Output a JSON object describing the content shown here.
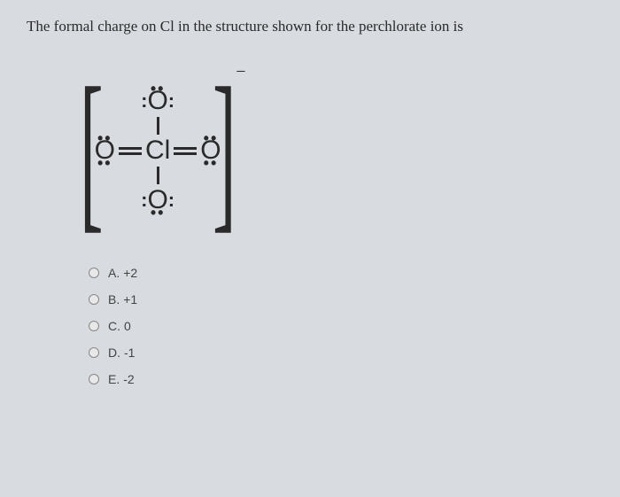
{
  "question": {
    "text": "The formal charge on Cl in the structure shown for the perchlorate ion is"
  },
  "structure": {
    "top_atom": "O",
    "bottom_atom": "O",
    "left_atom": "O",
    "right_atom": "O",
    "center_atom": "Cl",
    "charge": "−",
    "dots_h": "••",
    "colon": ":",
    "bracket_left": "[",
    "bracket_right": "]"
  },
  "options": [
    {
      "letter": "A.",
      "value": "+2"
    },
    {
      "letter": "B.",
      "value": "+1"
    },
    {
      "letter": "C.",
      "value": "0"
    },
    {
      "letter": "D.",
      "value": "-1"
    },
    {
      "letter": "E.",
      "value": "-2"
    }
  ],
  "styling": {
    "background_color": "#d8dce0",
    "text_color": "#2a2a2a",
    "question_fontsize": 17,
    "structure_fontsize": 30,
    "option_fontsize": 14
  }
}
